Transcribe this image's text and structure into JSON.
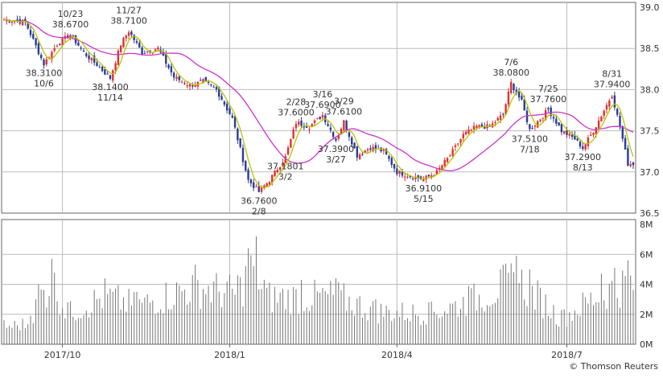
{
  "chart_data": [
    {
      "type": "candlestick",
      "ylim": [
        36.5,
        39.0
      ],
      "yticks": [
        "39.0",
        "38.5",
        "38.0",
        "37.5",
        "37.0",
        "36.5"
      ],
      "xticks": [
        "2017/10",
        "2018/1",
        "2018/4",
        "2018/7"
      ],
      "series": [
        {
          "kind": "ma-short",
          "color": "#b8c400"
        },
        {
          "kind": "ma-long",
          "color": "#cc33cc"
        }
      ],
      "anchors": [
        {
          "i": 0,
          "v": 38.85
        },
        {
          "i": 8,
          "v": 38.82
        },
        {
          "i": 15,
          "v": 38.31
        },
        {
          "i": 20,
          "v": 38.55
        },
        {
          "i": 25,
          "v": 38.67
        },
        {
          "i": 30,
          "v": 38.45
        },
        {
          "i": 35,
          "v": 38.3
        },
        {
          "i": 40,
          "v": 38.14
        },
        {
          "i": 44,
          "v": 38.55
        },
        {
          "i": 47,
          "v": 38.71
        },
        {
          "i": 52,
          "v": 38.45
        },
        {
          "i": 58,
          "v": 38.5
        },
        {
          "i": 64,
          "v": 38.15
        },
        {
          "i": 70,
          "v": 38.05
        },
        {
          "i": 75,
          "v": 38.1
        },
        {
          "i": 80,
          "v": 38.0
        },
        {
          "i": 86,
          "v": 37.65
        },
        {
          "i": 92,
          "v": 36.9
        },
        {
          "i": 96,
          "v": 36.76
        },
        {
          "i": 100,
          "v": 36.9
        },
        {
          "i": 106,
          "v": 37.18
        },
        {
          "i": 110,
          "v": 37.6
        },
        {
          "i": 115,
          "v": 37.55
        },
        {
          "i": 120,
          "v": 37.69
        },
        {
          "i": 125,
          "v": 37.39
        },
        {
          "i": 128,
          "v": 37.61
        },
        {
          "i": 133,
          "v": 37.2
        },
        {
          "i": 138,
          "v": 37.3
        },
        {
          "i": 143,
          "v": 37.25
        },
        {
          "i": 148,
          "v": 37.0
        },
        {
          "i": 153,
          "v": 36.95
        },
        {
          "i": 158,
          "v": 36.91
        },
        {
          "i": 163,
          "v": 37.0
        },
        {
          "i": 168,
          "v": 37.2
        },
        {
          "i": 173,
          "v": 37.45
        },
        {
          "i": 178,
          "v": 37.55
        },
        {
          "i": 183,
          "v": 37.55
        },
        {
          "i": 188,
          "v": 37.7
        },
        {
          "i": 191,
          "v": 38.08
        },
        {
          "i": 195,
          "v": 37.85
        },
        {
          "i": 198,
          "v": 37.51
        },
        {
          "i": 202,
          "v": 37.65
        },
        {
          "i": 205,
          "v": 37.76
        },
        {
          "i": 210,
          "v": 37.5
        },
        {
          "i": 215,
          "v": 37.4
        },
        {
          "i": 218,
          "v": 37.29
        },
        {
          "i": 222,
          "v": 37.5
        },
        {
          "i": 226,
          "v": 37.75
        },
        {
          "i": 229,
          "v": 37.94
        },
        {
          "i": 232,
          "v": 37.55
        },
        {
          "i": 235,
          "v": 37.1
        }
      ],
      "annotations": [
        {
          "text": [
            "10/23",
            "38.6700"
          ],
          "i": 25,
          "v": 38.67,
          "pos": "above"
        },
        {
          "text": [
            "38.3100",
            "10/6"
          ],
          "i": 15,
          "v": 38.31,
          "pos": "below"
        },
        {
          "text": [
            "11/27",
            "38.7100"
          ],
          "i": 47,
          "v": 38.71,
          "pos": "above"
        },
        {
          "text": [
            "38.1400",
            "11/14"
          ],
          "i": 40,
          "v": 38.14,
          "pos": "below"
        },
        {
          "text": [
            "2/28",
            "37.6000"
          ],
          "i": 110,
          "v": 37.6,
          "pos": "above"
        },
        {
          "text": [
            "3/16",
            "37.6900"
          ],
          "i": 120,
          "v": 37.69,
          "pos": "above"
        },
        {
          "text": [
            "3/29",
            "37.6100"
          ],
          "i": 128,
          "v": 37.61,
          "pos": "above"
        },
        {
          "text": [
            "37.3900",
            "3/27"
          ],
          "i": 125,
          "v": 37.39,
          "pos": "below"
        },
        {
          "text": [
            "37.1801",
            "3/2"
          ],
          "i": 106,
          "v": 37.18,
          "pos": "below"
        },
        {
          "text": [
            "36.7600",
            "2/8"
          ],
          "i": 96,
          "v": 36.76,
          "pos": "below"
        },
        {
          "text": [
            "36.9100",
            "5/15"
          ],
          "i": 158,
          "v": 36.91,
          "pos": "below"
        },
        {
          "text": [
            "7/6",
            "38.0800"
          ],
          "i": 191,
          "v": 38.08,
          "pos": "above"
        },
        {
          "text": [
            "7/25",
            "37.7600"
          ],
          "i": 205,
          "v": 37.76,
          "pos": "above"
        },
        {
          "text": [
            "37.5100",
            "7/18"
          ],
          "i": 198,
          "v": 37.51,
          "pos": "below"
        },
        {
          "text": [
            "37.2900",
            "8/13"
          ],
          "i": 218,
          "v": 37.29,
          "pos": "below"
        },
        {
          "text": [
            "8/31",
            "37.9400"
          ],
          "i": 229,
          "v": 37.94,
          "pos": "above"
        }
      ]
    },
    {
      "type": "bar",
      "ylim": [
        0,
        8
      ],
      "unit": "M",
      "yticks": [
        "8M",
        "6M",
        "4M",
        "2M",
        "0M"
      ],
      "xticks": [
        "2017/10",
        "2018/1",
        "2018/4",
        "2018/7"
      ],
      "peaks": [
        {
          "i": 0,
          "v": 1.6
        },
        {
          "i": 10,
          "v": 1.9
        },
        {
          "i": 13,
          "v": 4.0
        },
        {
          "i": 18,
          "v": 5.7
        },
        {
          "i": 24,
          "v": 2.8
        },
        {
          "i": 38,
          "v": 4.4
        },
        {
          "i": 50,
          "v": 3.5
        },
        {
          "i": 72,
          "v": 5.3
        },
        {
          "i": 88,
          "v": 4.6
        },
        {
          "i": 92,
          "v": 6.4
        },
        {
          "i": 95,
          "v": 7.2
        },
        {
          "i": 98,
          "v": 4.3
        },
        {
          "i": 112,
          "v": 4.3
        },
        {
          "i": 125,
          "v": 4.4
        },
        {
          "i": 140,
          "v": 3.0
        },
        {
          "i": 160,
          "v": 2.8
        },
        {
          "i": 175,
          "v": 3.9
        },
        {
          "i": 188,
          "v": 5.3
        },
        {
          "i": 193,
          "v": 5.9
        },
        {
          "i": 198,
          "v": 5.0
        },
        {
          "i": 210,
          "v": 2.3
        },
        {
          "i": 225,
          "v": 4.7
        },
        {
          "i": 230,
          "v": 5.1
        },
        {
          "i": 235,
          "v": 5.6
        }
      ]
    }
  ],
  "footer": {
    "copyright": "© Thomson Reuters"
  }
}
